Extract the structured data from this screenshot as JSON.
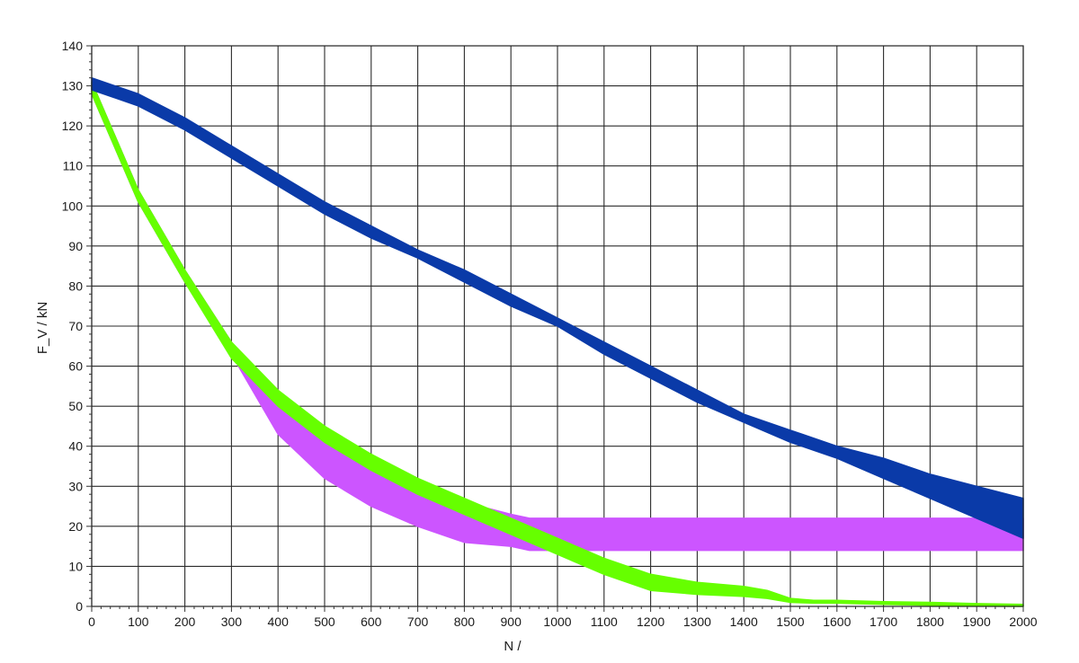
{
  "chart_data": {
    "type": "area",
    "xlabel": "N /",
    "ylabel": "F_V / kN",
    "xlim": [
      0,
      2000
    ],
    "ylim": [
      0,
      140
    ],
    "x_ticks": [
      0,
      100,
      200,
      300,
      400,
      500,
      600,
      700,
      800,
      900,
      1000,
      1100,
      1200,
      1300,
      1400,
      1500,
      1600,
      1700,
      1800,
      1900,
      2000
    ],
    "y_ticks": [
      0,
      10,
      20,
      30,
      40,
      50,
      60,
      70,
      80,
      90,
      100,
      110,
      120,
      130,
      140
    ],
    "grid": true,
    "legend": "none",
    "series": [
      {
        "color": "#cc55ff",
        "x": [
          0,
          100,
          200,
          300,
          400,
          500,
          600,
          700,
          800,
          900,
          940,
          1000,
          1100,
          1200,
          1300,
          1400,
          1500,
          1600,
          1700,
          1800,
          1900,
          2000
        ],
        "upper": [
          131,
          104,
          84,
          66,
          52,
          42,
          35,
          30,
          26,
          23,
          22,
          22,
          22,
          22,
          22,
          22,
          22,
          22,
          22,
          22,
          22,
          22
        ],
        "lower": [
          128,
          101,
          81,
          63,
          43,
          32,
          25,
          20,
          16,
          15,
          14,
          14,
          14,
          14,
          14,
          14,
          14,
          14,
          14,
          14,
          14,
          14
        ]
      },
      {
        "color": "#66ff00",
        "x": [
          0,
          100,
          200,
          300,
          400,
          500,
          600,
          700,
          800,
          900,
          1000,
          1100,
          1200,
          1300,
          1400,
          1450,
          1500,
          1550,
          1600,
          1700,
          1800,
          1900,
          2000
        ],
        "upper": [
          131,
          104,
          84,
          66,
          54,
          45,
          38,
          32,
          27,
          22,
          17,
          12,
          8,
          6,
          5,
          4,
          2,
          1.5,
          1.5,
          1.2,
          1,
          0.7,
          0.5
        ],
        "lower": [
          128,
          101,
          81,
          62,
          50,
          41,
          34,
          28,
          23,
          18,
          13,
          8,
          4,
          3,
          2.5,
          2,
          1,
          0.8,
          0.8,
          0.5,
          0.3,
          0.1,
          0
        ]
      },
      {
        "color": "#0a3aa8",
        "x": [
          0,
          100,
          200,
          300,
          400,
          500,
          600,
          700,
          800,
          900,
          1000,
          1100,
          1200,
          1300,
          1400,
          1500,
          1600,
          1700,
          1800,
          1900,
          2000
        ],
        "upper": [
          132,
          128,
          122,
          115,
          108,
          101,
          95,
          89,
          84,
          78,
          72,
          66,
          60,
          54,
          48,
          44,
          40,
          37,
          33,
          30,
          27
        ],
        "lower": [
          129,
          125,
          119,
          112,
          105,
          98,
          92,
          87,
          81,
          75,
          70,
          63,
          57,
          51,
          46,
          41,
          37,
          32,
          27,
          22,
          17
        ]
      }
    ]
  }
}
